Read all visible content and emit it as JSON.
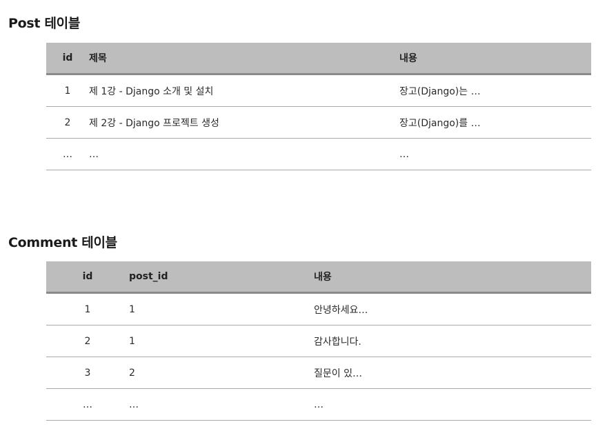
{
  "post_section": {
    "title": "Post 테이블",
    "columns": [
      "id",
      "제목",
      "내용"
    ],
    "rows": [
      [
        "1",
        "제 1강 - Django 소개 및 설치",
        "장고(Django)는 …"
      ],
      [
        "2",
        "제 2강 - Django 프로젝트 생성",
        "장고(Django)를 …"
      ],
      [
        "…",
        "…",
        "…"
      ]
    ]
  },
  "comment_section": {
    "title": "Comment 테이블",
    "columns": [
      "id",
      "post_id",
      "내용"
    ],
    "rows": [
      [
        "1",
        "1",
        "안녕하세요…"
      ],
      [
        "2",
        "1",
        "감사합니다."
      ],
      [
        "3",
        "2",
        "질문이 있…"
      ],
      [
        "…",
        "…",
        "…"
      ]
    ]
  },
  "colors": {
    "header_bg": "#bdbdbd",
    "header_rule": "#8a8a8a",
    "row_rule": "#a8a8a8",
    "text": "#222222"
  }
}
